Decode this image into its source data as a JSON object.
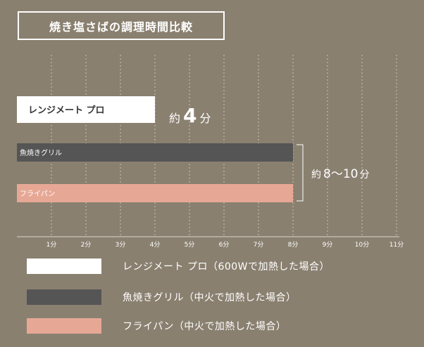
{
  "chart_data": {
    "type": "bar",
    "orientation": "horizontal",
    "title": "焼き塩さばの調理時間比較",
    "xlim": [
      0,
      11
    ],
    "x_ticks": [
      {
        "value": 1,
        "label": "1分"
      },
      {
        "value": 2,
        "label": "2分"
      },
      {
        "value": 3,
        "label": "3分"
      },
      {
        "value": 4,
        "label": "4分"
      },
      {
        "value": 5,
        "label": "5分"
      },
      {
        "value": 6,
        "label": "6分"
      },
      {
        "value": 7,
        "label": "7分"
      },
      {
        "value": 8,
        "label": "8分"
      },
      {
        "value": 9,
        "label": "9分"
      },
      {
        "value": 10,
        "label": "10分"
      },
      {
        "value": 11,
        "label": "11分"
      }
    ],
    "grid": "vertical dashed",
    "bars": [
      {
        "label": "レンジメート プロ",
        "value": 4,
        "color": "#ffffff",
        "text_color": "#333333"
      },
      {
        "label": "魚焼きグリル",
        "value": 8,
        "color": "#555555",
        "text_color": "#ffffff"
      },
      {
        "label": "フライパン",
        "value": 8,
        "color": "#e6a895",
        "text_color": "#ffffff"
      }
    ],
    "annotations": [
      {
        "prefix": "約",
        "value": "4",
        "suffix": "分"
      },
      {
        "prefix": "約",
        "value": "8～10",
        "suffix": "分"
      }
    ],
    "legend": {
      "placement": "bottom",
      "entries": [
        {
          "label": "レンジメート プロ（600Wで加熱した場合）",
          "color": "#ffffff"
        },
        {
          "label": "魚焼きグリル（中火で加熱した場合）",
          "color": "#555555"
        },
        {
          "label": "フライパン（中火で加熱した場合）",
          "color": "#e6a895"
        }
      ]
    }
  }
}
